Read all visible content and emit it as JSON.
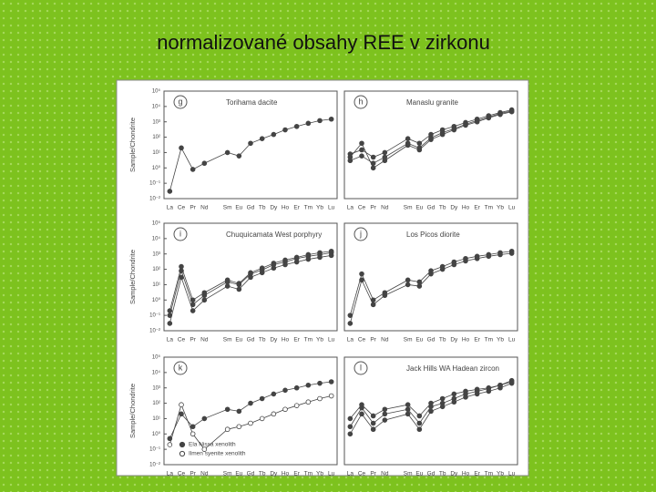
{
  "title": "normalizované obsahy REE v zirkonu",
  "chart_data": [
    {
      "type": "line",
      "label": "g",
      "title": "Torihama dacite",
      "ylabel": "Sample/Chondrite",
      "yscale": "log",
      "categories": [
        "La",
        "Ce",
        "Pr",
        "Nd",
        "Sm",
        "Eu",
        "Gd",
        "Tb",
        "Dy",
        "Ho",
        "Er",
        "Tm",
        "Yb",
        "Lu"
      ],
      "ylim": [
        0.01,
        100000
      ],
      "yticks": [
        {
          "value": 0.01,
          "label": "10⁻²"
        },
        {
          "value": 0.1,
          "label": "10⁻¹"
        },
        {
          "value": 1,
          "label": "10⁰"
        },
        {
          "value": 10,
          "label": "10¹"
        },
        {
          "value": 100,
          "label": "10²"
        },
        {
          "value": 1000,
          "label": "10³"
        },
        {
          "value": 10000,
          "label": "10⁴"
        },
        {
          "value": 100000,
          "label": "10⁵"
        }
      ],
      "series": [
        {
          "color": "#444",
          "values": [
            0.03,
            20,
            0.8,
            2,
            10,
            6,
            40,
            80,
            150,
            300,
            500,
            800,
            1200,
            1500
          ]
        }
      ]
    },
    {
      "type": "line",
      "label": "h",
      "title": "Manaslu granite",
      "yscale": "log",
      "categories": [
        "La",
        "Ce",
        "Pr",
        "Nd",
        "Sm",
        "Eu",
        "Gd",
        "Tb",
        "Dy",
        "Ho",
        "Er",
        "Tm",
        "Yb",
        "Lu"
      ],
      "ylim": [
        0.01,
        100000
      ],
      "series": [
        {
          "color": "#444",
          "values": [
            8,
            15,
            5,
            10,
            80,
            40,
            150,
            300,
            500,
            900,
            1500,
            2500,
            4000,
            6000
          ]
        },
        {
          "color": "#444",
          "values": [
            3,
            6,
            2,
            5,
            40,
            20,
            90,
            200,
            350,
            700,
            1200,
            2000,
            3500,
            5000
          ]
        },
        {
          "color": "#444",
          "values": [
            5,
            40,
            1,
            3,
            30,
            15,
            70,
            150,
            300,
            600,
            1000,
            1800,
            3000,
            4500
          ]
        }
      ]
    },
    {
      "type": "line",
      "label": "i",
      "title": "Chuquicamata West porphyry",
      "ylabel": "Sample/Chondrite",
      "yscale": "log",
      "categories": [
        "La",
        "Ce",
        "Pr",
        "Nd",
        "Sm",
        "Eu",
        "Gd",
        "Tb",
        "Dy",
        "Ho",
        "Er",
        "Tm",
        "Yb",
        "Lu"
      ],
      "ylim": [
        0.01,
        100000
      ],
      "yticks": [
        {
          "value": 0.01,
          "label": "10⁻²"
        },
        {
          "value": 0.1,
          "label": "10⁻¹"
        },
        {
          "value": 1,
          "label": "10⁰"
        },
        {
          "value": 10,
          "label": "10¹"
        },
        {
          "value": 100,
          "label": "10²"
        },
        {
          "value": 1000,
          "label": "10³"
        },
        {
          "value": 10000,
          "label": "10⁴"
        },
        {
          "value": 100000,
          "label": "10⁵"
        }
      ],
      "series": [
        {
          "color": "#444",
          "values": [
            0.1,
            80,
            0.5,
            2,
            15,
            10,
            50,
            90,
            200,
            300,
            500,
            700,
            900,
            1200
          ]
        },
        {
          "color": "#444",
          "values": [
            0.03,
            30,
            0.2,
            1,
            8,
            5,
            30,
            60,
            120,
            200,
            300,
            450,
            600,
            800
          ]
        },
        {
          "color": "#444",
          "values": [
            0.2,
            150,
            1,
            3,
            20,
            12,
            60,
            120,
            250,
            400,
            600,
            900,
            1200,
            1500
          ]
        }
      ]
    },
    {
      "type": "line",
      "label": "j",
      "title": "Los Picos diorite",
      "yscale": "log",
      "categories": [
        "La",
        "Ce",
        "Pr",
        "Nd",
        "Sm",
        "Eu",
        "Gd",
        "Tb",
        "Dy",
        "Ho",
        "Er",
        "Tm",
        "Yb",
        "Lu"
      ],
      "ylim": [
        0.01,
        100000
      ],
      "series": [
        {
          "color": "#444",
          "values": [
            0.1,
            50,
            1,
            3,
            20,
            15,
            80,
            150,
            300,
            500,
            700,
            900,
            1200,
            1500
          ]
        },
        {
          "color": "#444",
          "values": [
            0.03,
            20,
            0.5,
            2,
            10,
            8,
            50,
            100,
            200,
            350,
            500,
            700,
            900,
            1100
          ]
        }
      ]
    },
    {
      "type": "line",
      "label": "k",
      "ylabel": "Sample/Chondrite",
      "yscale": "log",
      "legend": "lower left",
      "categories": [
        "La",
        "Ce",
        "Pr",
        "Nd",
        "Sm",
        "Eu",
        "Gd",
        "Tb",
        "Dy",
        "Ho",
        "Er",
        "Tm",
        "Yb",
        "Lu"
      ],
      "ylim": [
        0.01,
        100000
      ],
      "yticks": [
        {
          "value": 0.01,
          "label": "10⁻²"
        },
        {
          "value": 0.1,
          "label": "10⁻¹"
        },
        {
          "value": 1,
          "label": "10⁰"
        },
        {
          "value": 10,
          "label": "10¹"
        },
        {
          "value": 100,
          "label": "10²"
        },
        {
          "value": 1000,
          "label": "10³"
        },
        {
          "value": 10000,
          "label": "10⁴"
        },
        {
          "value": 100000,
          "label": "10⁵"
        }
      ],
      "series": [
        {
          "name": "Ela Nissa xenolith",
          "color": "#444",
          "marker": "filled",
          "values": [
            0.5,
            20,
            3,
            10,
            40,
            30,
            100,
            200,
            400,
            700,
            1000,
            1500,
            2000,
            2500
          ]
        },
        {
          "name": "Ilmen syenite xenolith",
          "color": "#444",
          "marker": "open",
          "values": [
            0.2,
            80,
            1,
            0.1,
            2,
            3,
            5,
            10,
            20,
            40,
            70,
            120,
            200,
            300
          ]
        }
      ]
    },
    {
      "type": "line",
      "label": "l",
      "title": "Jack Hills WA Hadean zircon",
      "yscale": "log",
      "categories": [
        "La",
        "Ce",
        "Pr",
        "Nd",
        "Sm",
        "Eu",
        "Gd",
        "Tb",
        "Dy",
        "Ho",
        "Er",
        "Tm",
        "Yb",
        "Lu"
      ],
      "ylim": [
        0.01,
        100000
      ],
      "series": [
        {
          "color": "#444",
          "values": [
            3,
            50,
            5,
            20,
            40,
            5,
            60,
            100,
            200,
            400,
            600,
            900,
            1500,
            3000
          ]
        },
        {
          "color": "#444",
          "values": [
            1,
            20,
            2,
            8,
            20,
            2,
            30,
            60,
            120,
            250,
            400,
            600,
            1000,
            2000
          ]
        },
        {
          "color": "#444",
          "values": [
            10,
            80,
            15,
            40,
            80,
            15,
            100,
            200,
            400,
            600,
            800,
            1000,
            1500,
            2500
          ]
        }
      ]
    }
  ]
}
